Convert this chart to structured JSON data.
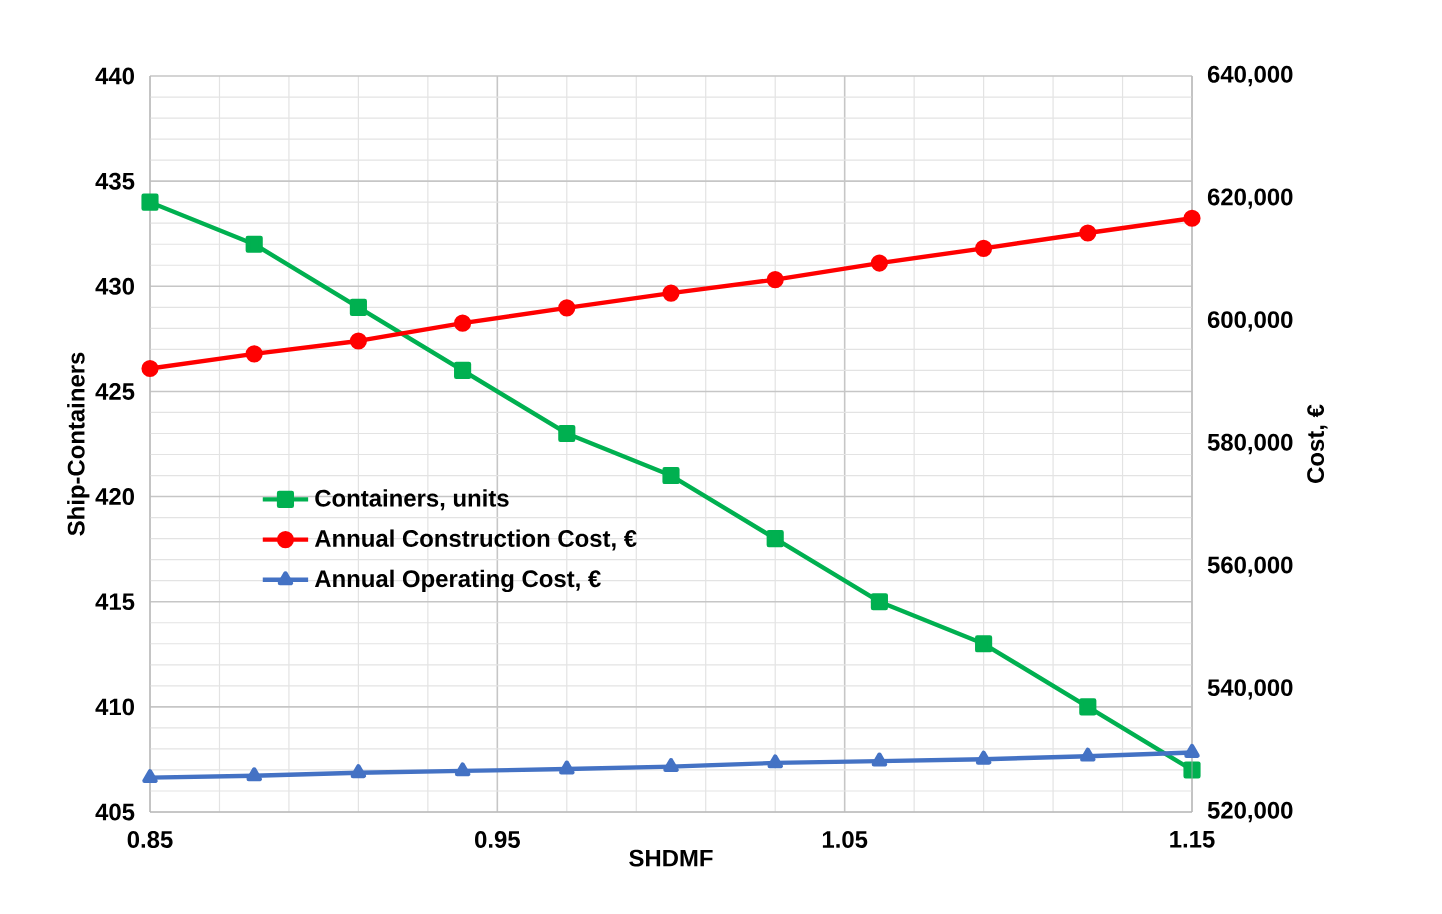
{
  "chart_data": {
    "type": "line",
    "xlabel": "SHDMF",
    "ylabel": "Ship-Containers",
    "y2label": "Cost, €",
    "x": [
      0.85,
      0.88,
      0.91,
      0.94,
      0.97,
      1.0,
      1.03,
      1.06,
      1.09,
      1.12,
      1.15
    ],
    "series": [
      {
        "name": "Containers, units",
        "color": "#00b050",
        "marker": "square",
        "values": [
          434,
          432,
          429,
          426,
          423,
          421,
          418,
          415,
          413,
          410,
          407
        ]
      },
      {
        "name": "Annual Construction Cost, €",
        "color": "#ff0000",
        "marker": "circle",
        "axis": "y2",
        "values": [
          592300,
          594700,
          596800,
          599700,
          602200,
          604600,
          606800,
          609500,
          611900,
          614400,
          616800
        ]
      },
      {
        "name": "Annual Operating Cost, €",
        "color": "#4472c4",
        "marker": "triangle",
        "axis": "y2",
        "values": [
          525600,
          525900,
          526400,
          526700,
          527000,
          527400,
          528000,
          528300,
          528600,
          529100,
          529700
        ]
      }
    ],
    "xlim": [
      0.85,
      1.15
    ],
    "xticks": [
      0.85,
      0.95,
      1.05,
      1.15
    ],
    "ylim": [
      405,
      440
    ],
    "yticks": [
      405,
      410,
      415,
      420,
      425,
      430,
      435,
      440
    ],
    "y2lim": [
      520000,
      640000
    ],
    "y2ticks": [
      {
        "value": 520000,
        "label": "520,000"
      },
      {
        "value": 540000,
        "label": "540,000"
      },
      {
        "value": 560000,
        "label": "560,000"
      },
      {
        "value": 580000,
        "label": "580,000"
      },
      {
        "value": 600000,
        "label": "600,000"
      },
      {
        "value": 620000,
        "label": "620,000"
      },
      {
        "value": 640000,
        "label": "640,000"
      }
    ],
    "grid": true,
    "legend": "left",
    "line_style": "solid"
  }
}
